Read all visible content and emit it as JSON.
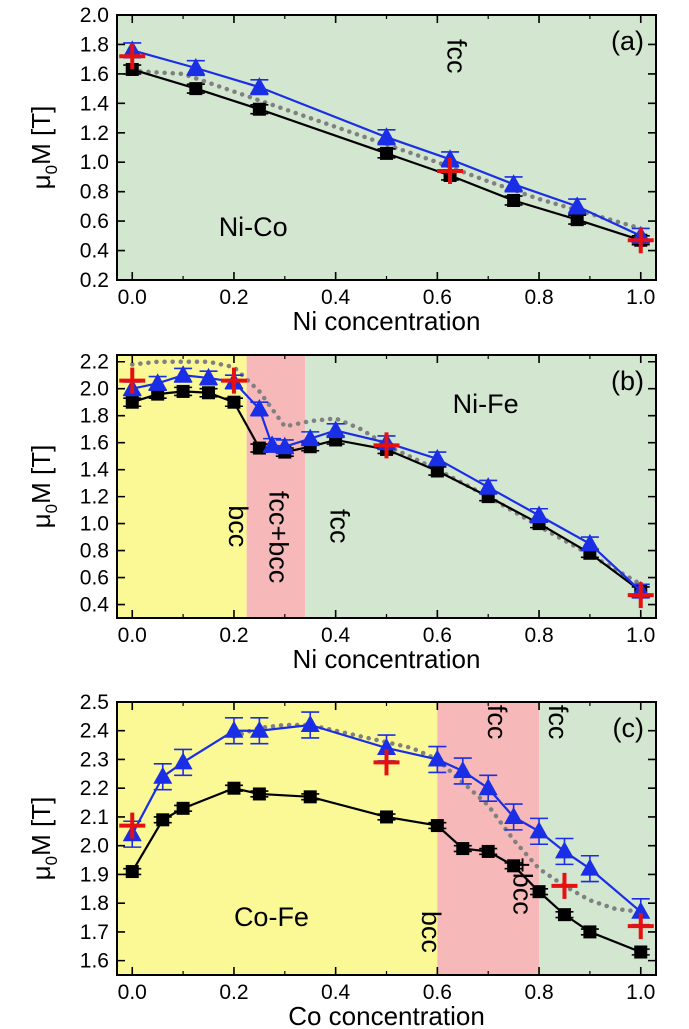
{
  "chart_data": [
    {
      "type": "line",
      "panel_label": "(a)",
      "xlabel": "Ni concentration",
      "ylabel": "μ0M [T]",
      "xlim": [
        -0.03,
        1.03
      ],
      "ylim": [
        0.2,
        2.0
      ],
      "xticks": [
        0.0,
        0.2,
        0.4,
        0.6,
        0.8,
        1.0
      ],
      "xtick_labels": [
        "0.0",
        "0.2",
        "0.4",
        "0.6",
        "0.8",
        "1.0"
      ],
      "yticks": [
        0.2,
        0.4,
        0.6,
        0.8,
        1.0,
        1.2,
        1.4,
        1.6,
        1.8,
        2.0
      ],
      "ytick_labels": [
        "0.2",
        "0.4",
        "0.6",
        "0.8",
        "1.0",
        "1.2",
        "1.4",
        "1.6",
        "1.8",
        "2.0"
      ],
      "regions": [
        {
          "x0": -0.03,
          "x1": 1.03,
          "color": "#d2e6d0",
          "label": "fcc",
          "label_x": 0.62,
          "label_y": 1.72,
          "rotated": true
        }
      ],
      "annotations": [
        {
          "text": "Ni-Co",
          "x": 0.17,
          "y": 0.5
        }
      ],
      "series": [
        {
          "marker": "square",
          "color": "#000000",
          "x": [
            0.0,
            0.125,
            0.25,
            0.5,
            0.625,
            0.75,
            0.875,
            1.0
          ],
          "y": [
            1.63,
            1.5,
            1.36,
            1.06,
            0.91,
            0.74,
            0.61,
            0.47
          ],
          "err": 0.03
        },
        {
          "marker": "triangle",
          "color": "#1a2ee6",
          "x": [
            0.0,
            0.125,
            0.25,
            0.5,
            0.625,
            0.75,
            0.875,
            1.0
          ],
          "y": [
            1.76,
            1.64,
            1.51,
            1.17,
            1.02,
            0.85,
            0.7,
            0.5
          ],
          "err": 0.05
        },
        {
          "marker": "dotted",
          "color": "#808080",
          "x": [
            0.0,
            0.1,
            0.2,
            0.3,
            0.4,
            0.5,
            0.6,
            0.7,
            0.8,
            0.9,
            1.0
          ],
          "y": [
            1.62,
            1.6,
            1.48,
            1.36,
            1.24,
            1.12,
            1.0,
            0.87,
            0.75,
            0.65,
            0.55
          ]
        },
        {
          "marker": "plus",
          "color": "#e61010",
          "x": [
            0.0,
            0.625,
            1.0
          ],
          "y": [
            1.72,
            0.94,
            0.47
          ]
        }
      ]
    },
    {
      "type": "line",
      "panel_label": "(b)",
      "xlabel": "Ni concentration",
      "ylabel": "μ0M [T]",
      "xlim": [
        -0.03,
        1.03
      ],
      "ylim": [
        0.3,
        2.25
      ],
      "xticks": [
        0.0,
        0.2,
        0.4,
        0.6,
        0.8,
        1.0
      ],
      "xtick_labels": [
        "0.0",
        "0.2",
        "0.4",
        "0.6",
        "0.8",
        "1.0"
      ],
      "yticks": [
        0.4,
        0.6,
        0.8,
        1.0,
        1.2,
        1.4,
        1.6,
        1.8,
        2.0,
        2.2
      ],
      "ytick_labels": [
        "0.4",
        "0.6",
        "0.8",
        "1.0",
        "1.2",
        "1.4",
        "1.6",
        "1.8",
        "2.0",
        "2.2"
      ],
      "regions": [
        {
          "x0": -0.03,
          "x1": 0.225,
          "color": "#fbf995",
          "label": "bcc",
          "label_x": 0.19,
          "label_y": 0.98,
          "rotated": true
        },
        {
          "x0": 0.225,
          "x1": 0.34,
          "color": "#f6b8b8",
          "label": "fcc+bcc",
          "label_x": 0.27,
          "label_y": 0.9,
          "rotated": true
        },
        {
          "x0": 0.34,
          "x1": 1.03,
          "color": "#d2e6d0",
          "label": "fcc",
          "label_x": 0.39,
          "label_y": 0.98,
          "rotated": true
        }
      ],
      "annotations": [
        {
          "text": "Ni-Fe",
          "x": 0.63,
          "y": 1.82
        }
      ],
      "series": [
        {
          "marker": "square",
          "color": "#000000",
          "x": [
            0.0,
            0.05,
            0.1,
            0.15,
            0.2,
            0.25,
            0.3,
            0.35,
            0.4,
            0.5,
            0.6,
            0.7,
            0.8,
            0.9,
            1.0
          ],
          "y": [
            1.9,
            1.96,
            1.98,
            1.97,
            1.9,
            1.56,
            1.53,
            1.57,
            1.62,
            1.55,
            1.39,
            1.2,
            1.0,
            0.78,
            0.5
          ],
          "err": 0.03
        },
        {
          "marker": "triangle",
          "color": "#1a2ee6",
          "x": [
            0.0,
            0.05,
            0.1,
            0.15,
            0.2,
            0.25,
            0.275,
            0.3,
            0.35,
            0.4,
            0.5,
            0.6,
            0.7,
            0.8,
            0.9,
            1.0
          ],
          "y": [
            2.0,
            2.04,
            2.1,
            2.08,
            2.05,
            1.85,
            1.58,
            1.57,
            1.63,
            1.69,
            1.6,
            1.48,
            1.27,
            1.06,
            0.85,
            0.5
          ],
          "err": 0.05
        },
        {
          "marker": "dotted",
          "color": "#808080",
          "x": [
            0.0,
            0.05,
            0.1,
            0.15,
            0.2,
            0.25,
            0.3,
            0.35,
            0.4,
            0.45,
            0.5,
            0.6,
            0.7,
            0.8,
            0.9,
            1.0
          ],
          "y": [
            2.18,
            2.2,
            2.2,
            2.2,
            2.16,
            1.98,
            1.72,
            1.76,
            1.78,
            1.7,
            1.58,
            1.4,
            1.2,
            0.98,
            0.77,
            0.55
          ]
        },
        {
          "marker": "plus",
          "color": "#e61010",
          "x": [
            0.0,
            0.2,
            0.5,
            1.0
          ],
          "y": [
            2.06,
            2.06,
            1.58,
            0.47
          ]
        }
      ]
    },
    {
      "type": "line",
      "panel_label": "(c)",
      "xlabel": "Co concentration",
      "ylabel": "μ0M [T]",
      "xlim": [
        -0.03,
        1.03
      ],
      "ylim": [
        1.55,
        2.5
      ],
      "xticks": [
        0.0,
        0.2,
        0.4,
        0.6,
        0.8,
        1.0
      ],
      "xtick_labels": [
        "0.0",
        "0.2",
        "0.4",
        "0.6",
        "0.8",
        "1.0"
      ],
      "yticks": [
        1.6,
        1.7,
        1.8,
        1.9,
        2.0,
        2.1,
        2.2,
        2.3,
        2.4,
        2.5
      ],
      "ytick_labels": [
        "1.6",
        "1.7",
        "1.8",
        "1.9",
        "2.0",
        "2.1",
        "2.2",
        "2.3",
        "2.4",
        "2.5"
      ],
      "regions": [
        {
          "x0": -0.03,
          "x1": 0.6,
          "color": "#fbf995",
          "label": "bcc",
          "label_x": 0.57,
          "label_y": 1.7,
          "rotated": true
        },
        {
          "x0": 0.6,
          "x1": 0.8,
          "color": "#f6b8b8",
          "label": "fcc",
          "label_x": 0.7,
          "label_y": 2.43,
          "rotated": true,
          "label2": "+bcc",
          "label2_x": 0.75,
          "label2_y": 1.86
        },
        {
          "x0": 0.8,
          "x1": 1.03,
          "color": "#d2e6d0",
          "label": "fcc",
          "label_x": 0.82,
          "label_y": 2.43,
          "rotated": true
        }
      ],
      "annotations": [
        {
          "text": "Co-Fe",
          "x": 0.2,
          "y": 1.72
        }
      ],
      "series": [
        {
          "marker": "square",
          "color": "#000000",
          "x": [
            0.0,
            0.06,
            0.1,
            0.2,
            0.25,
            0.35,
            0.5,
            0.6,
            0.65,
            0.7,
            0.75,
            0.8,
            0.85,
            0.9,
            1.0
          ],
          "y": [
            1.91,
            2.09,
            2.13,
            2.2,
            2.18,
            2.17,
            2.1,
            2.07,
            1.99,
            1.98,
            1.93,
            1.84,
            1.76,
            1.7,
            1.63
          ],
          "err": 0.01
        },
        {
          "marker": "triangle",
          "color": "#1a2ee6",
          "x": [
            0.0,
            0.06,
            0.1,
            0.2,
            0.25,
            0.35,
            0.5,
            0.6,
            0.65,
            0.7,
            0.75,
            0.8,
            0.85,
            0.9,
            1.0
          ],
          "y": [
            2.04,
            2.24,
            2.29,
            2.4,
            2.4,
            2.42,
            2.34,
            2.3,
            2.26,
            2.2,
            2.1,
            2.05,
            1.98,
            1.92,
            1.77
          ],
          "err": 0.045
        },
        {
          "marker": "dotted",
          "color": "#808080",
          "x": [
            0.2,
            0.25,
            0.3,
            0.35,
            0.4,
            0.5,
            0.55,
            0.6,
            0.65,
            0.7,
            0.75,
            0.8,
            0.85,
            0.9,
            0.95,
            1.0
          ],
          "y": [
            2.38,
            2.41,
            2.42,
            2.42,
            2.4,
            2.36,
            2.34,
            2.3,
            2.22,
            2.14,
            2.02,
            1.92,
            1.86,
            1.81,
            1.78,
            1.77
          ]
        },
        {
          "marker": "plus",
          "color": "#e61010",
          "x": [
            0.0,
            0.5,
            0.85,
            1.0
          ],
          "y": [
            2.07,
            2.29,
            1.86,
            1.72
          ]
        }
      ]
    }
  ]
}
